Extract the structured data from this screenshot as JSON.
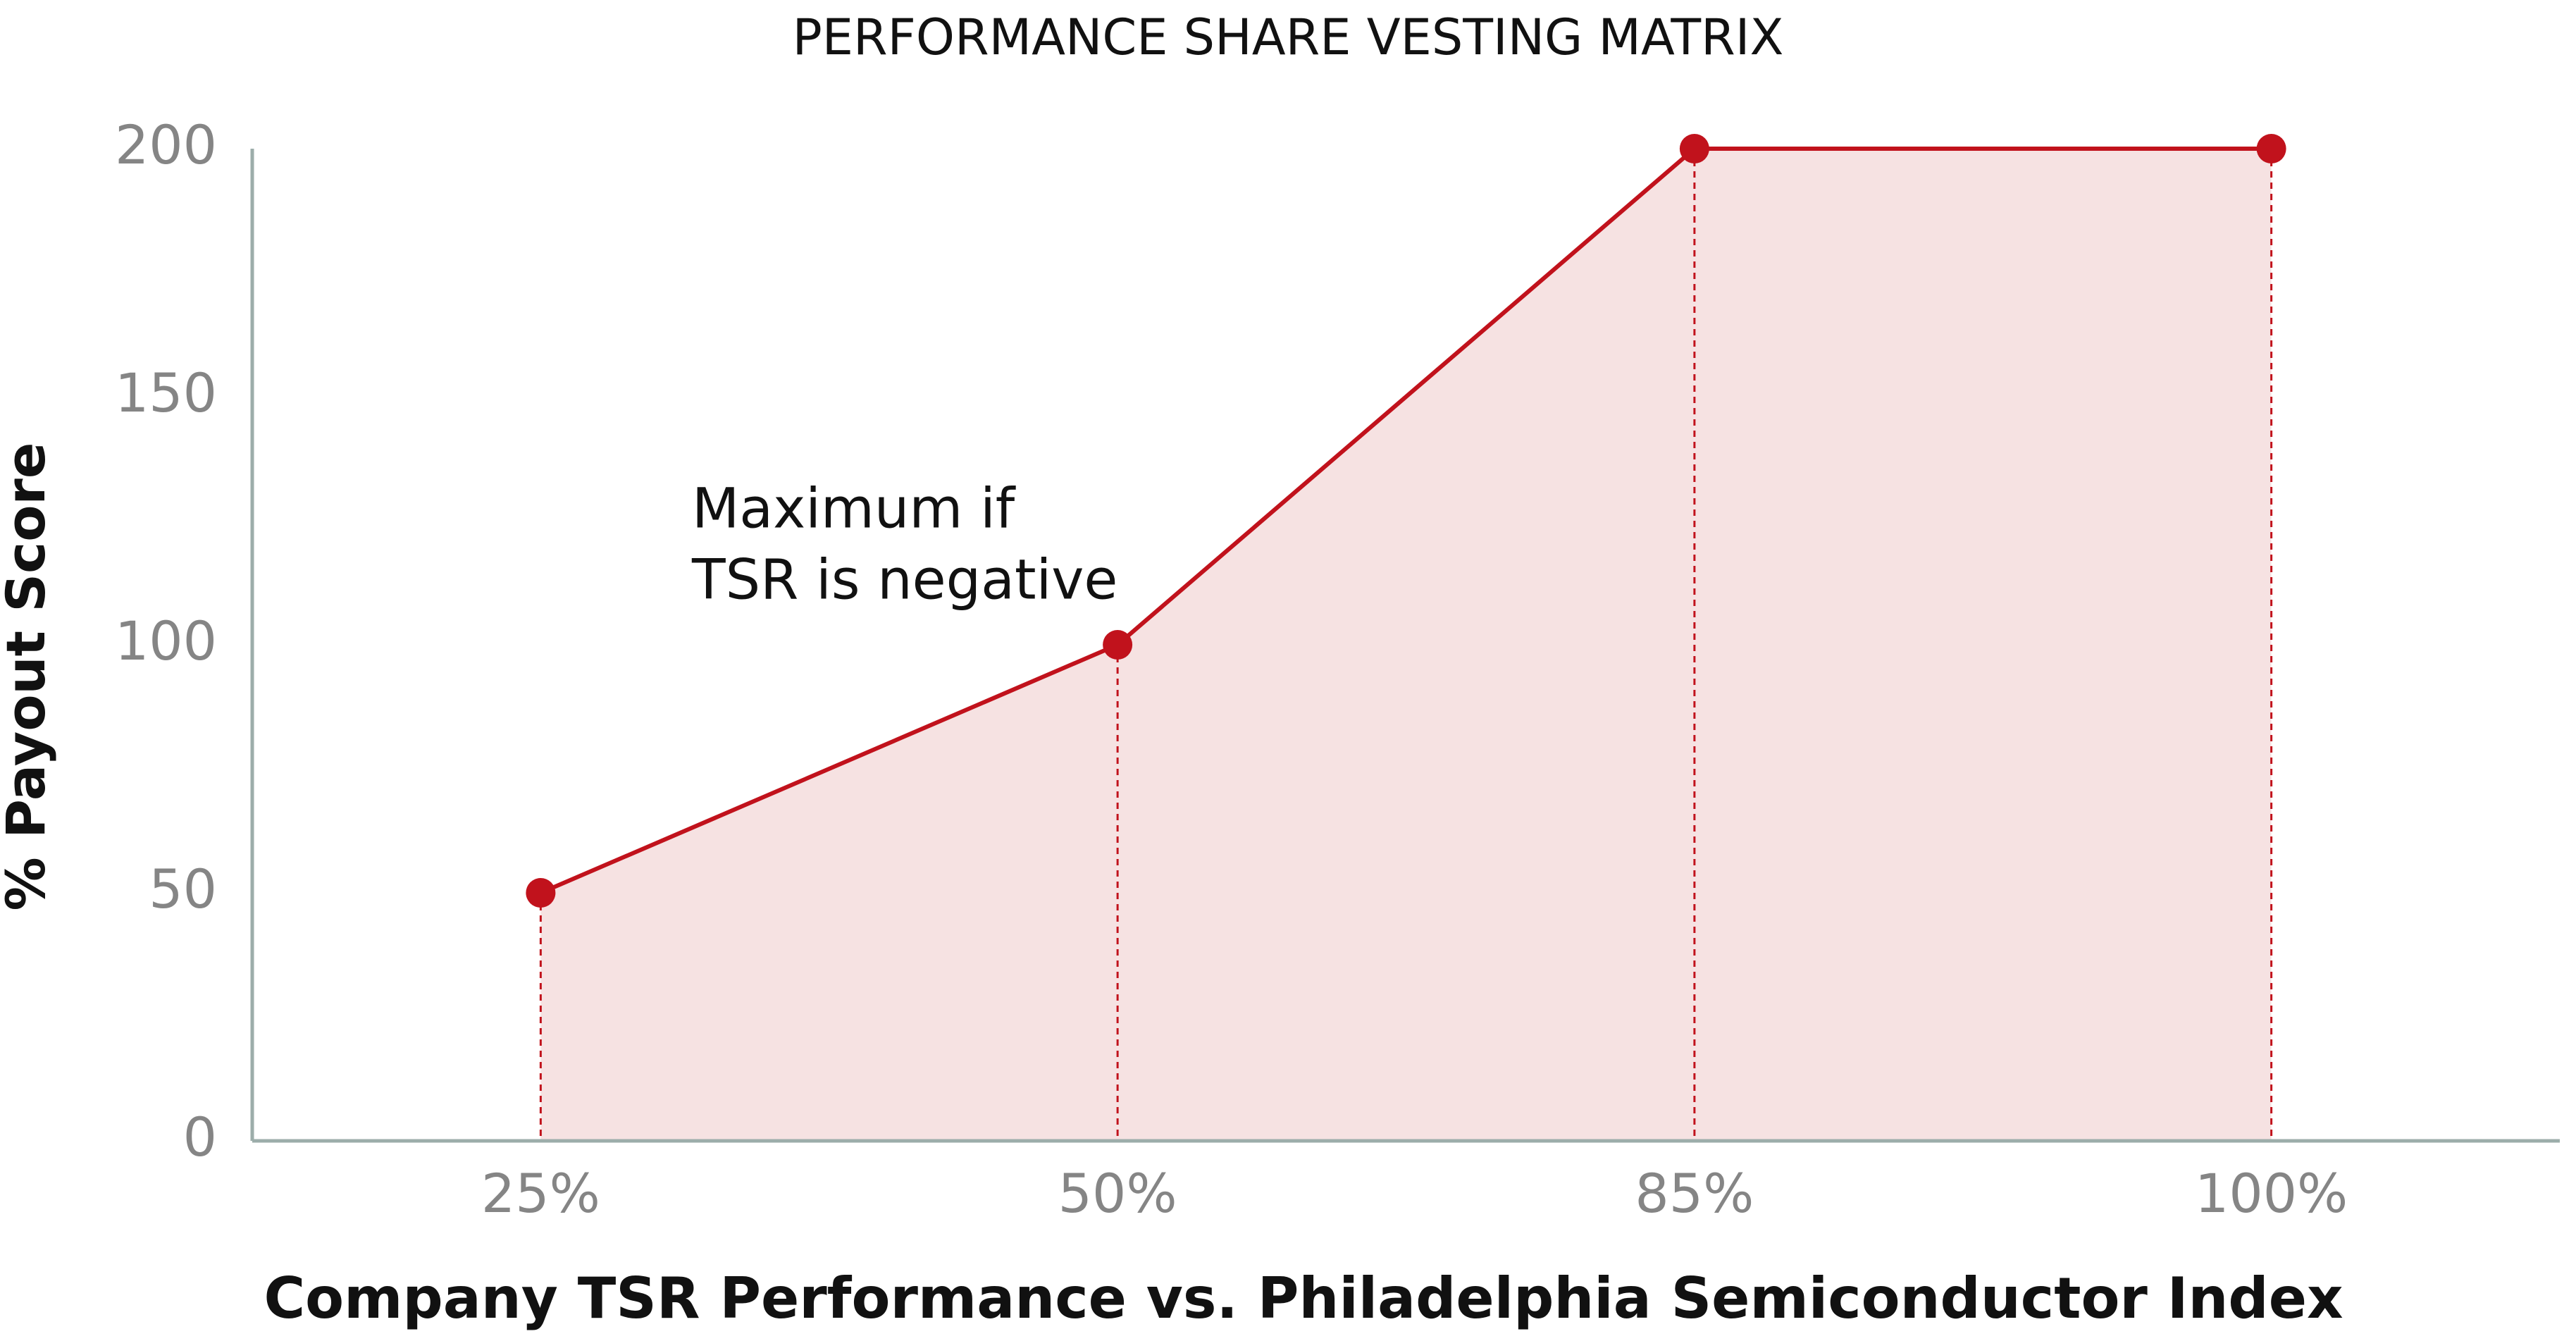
{
  "chart_data": {
    "type": "area",
    "title": "PERFORMANCE SHARE VESTING MATRIX",
    "x_label": "Company TSR Performance vs. Philadelphia Semiconductor Index",
    "y_label": "% Payout Score",
    "categories": [
      "25%",
      "50%",
      "85%",
      "100%"
    ],
    "values": [
      50,
      100,
      200,
      200
    ],
    "color": "#c1121c",
    "fill_color": "#f6e2e2",
    "ylim": [
      0,
      200
    ],
    "yticks": [
      0,
      50,
      100,
      150,
      200
    ],
    "annotation": [
      "Maximum if",
      "TSR is negative"
    ]
  }
}
